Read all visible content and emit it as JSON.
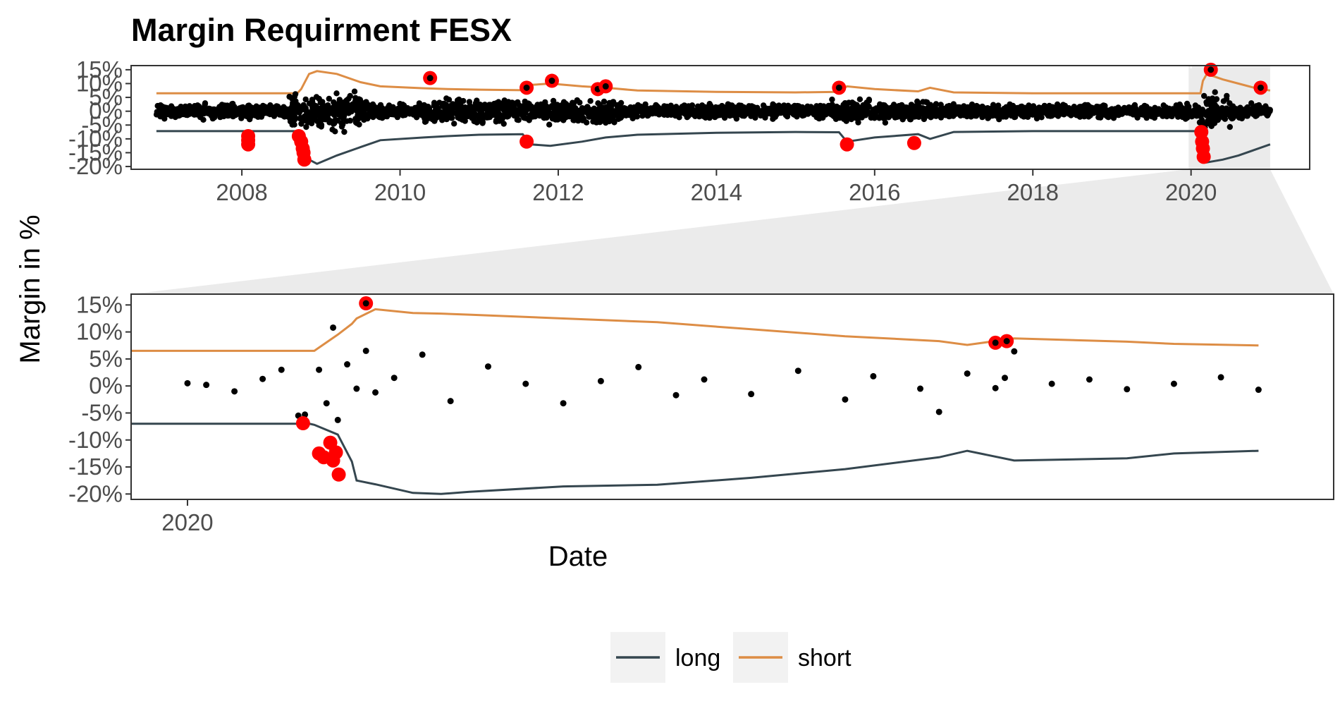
{
  "chart_data": {
    "type": "line",
    "title": "Margin Requirment FESX",
    "xlabel": "Date",
    "ylabel": "Margin in %",
    "colors": {
      "long": "#35464f",
      "short": "#dd8d45",
      "returns": "#000000",
      "breach": "#ff0000",
      "zoom_band": "#ebebeb"
    },
    "legend": {
      "position": "bottom",
      "entries": [
        {
          "name": "long",
          "color": "#35464f"
        },
        {
          "name": "short",
          "color": "#dd8d45"
        }
      ]
    },
    "overview": {
      "x_range": [
        2006.6,
        2021.5
      ],
      "x_ticks": [
        2008,
        2010,
        2012,
        2014,
        2016,
        2018,
        2020
      ],
      "x_tick_labels": [
        "2008",
        "2010",
        "2012",
        "2014",
        "2016",
        "2018",
        "2020"
      ],
      "y_range": [
        -21,
        16.5
      ],
      "y_ticks": [
        -20,
        -15,
        -10,
        -5,
        0,
        5,
        10,
        15
      ],
      "y_tick_labels": [
        "-20%",
        "-15%",
        "-10%",
        "-5%",
        "0%",
        "5%",
        "10%",
        "15%"
      ],
      "zoom_window": [
        2019.97,
        2021.0
      ],
      "series": [
        {
          "name": "short",
          "x": [
            2006.92,
            2008.7,
            2008.75,
            2008.85,
            2008.95,
            2009.2,
            2009.5,
            2009.75,
            2010.3,
            2010.6,
            2011.0,
            2011.55,
            2011.65,
            2011.9,
            2012.3,
            2012.6,
            2013.0,
            2014.0,
            2015.0,
            2015.55,
            2015.65,
            2016.0,
            2016.55,
            2016.7,
            2017.0,
            2018.0,
            2019.0,
            2020.0,
            2020.12,
            2020.15,
            2020.2,
            2020.4,
            2020.6,
            2020.8,
            2021.0
          ],
          "y": [
            6.5,
            6.5,
            8,
            13.5,
            14.5,
            13.5,
            10.5,
            9,
            8.3,
            8,
            7.8,
            7.6,
            9.5,
            10,
            9,
            8.5,
            7.5,
            7.0,
            6.8,
            7,
            9,
            8,
            7.2,
            8.5,
            6.8,
            6.5,
            6.5,
            6.5,
            6.5,
            11,
            13.5,
            11.5,
            10,
            8.5,
            7.5
          ]
        },
        {
          "name": "long",
          "x": [
            2006.92,
            2008.7,
            2008.75,
            2008.85,
            2008.95,
            2009.2,
            2009.5,
            2009.75,
            2010.3,
            2010.6,
            2011.0,
            2011.55,
            2011.65,
            2011.9,
            2012.3,
            2012.6,
            2013.0,
            2014.0,
            2015.0,
            2015.55,
            2015.65,
            2016.0,
            2016.55,
            2016.7,
            2017.0,
            2018.0,
            2019.0,
            2020.0,
            2020.12,
            2020.15,
            2020.2,
            2020.4,
            2020.6,
            2020.8,
            2021.0
          ],
          "y": [
            -7.2,
            -7.2,
            -12,
            -17.5,
            -19,
            -16,
            -13,
            -10.5,
            -9.5,
            -9,
            -8.5,
            -8.3,
            -12,
            -12.5,
            -11,
            -9.5,
            -8.5,
            -7.8,
            -7.5,
            -7.6,
            -11,
            -9.5,
            -8.3,
            -10,
            -7.5,
            -7.2,
            -7.2,
            -7.2,
            -7.2,
            -14,
            -18.5,
            -17.5,
            -16,
            -14,
            -12
          ]
        }
      ],
      "breaches": [
        {
          "x": 2008.08,
          "y": -9
        },
        {
          "x": 2008.08,
          "y": -10.5
        },
        {
          "x": 2008.08,
          "y": -12
        },
        {
          "x": 2008.72,
          "y": -9
        },
        {
          "x": 2008.75,
          "y": -11
        },
        {
          "x": 2008.77,
          "y": -13.5
        },
        {
          "x": 2008.78,
          "y": -15
        },
        {
          "x": 2008.79,
          "y": -17.5
        },
        {
          "x": 2010.38,
          "y": 12
        },
        {
          "x": 2011.6,
          "y": 8.5
        },
        {
          "x": 2011.6,
          "y": -11
        },
        {
          "x": 2011.92,
          "y": 11
        },
        {
          "x": 2012.5,
          "y": 8
        },
        {
          "x": 2012.6,
          "y": 9
        },
        {
          "x": 2015.55,
          "y": 8.5
        },
        {
          "x": 2015.65,
          "y": -12
        },
        {
          "x": 2016.5,
          "y": -11.5
        },
        {
          "x": 2020.13,
          "y": -7.5
        },
        {
          "x": 2020.14,
          "y": -11
        },
        {
          "x": 2020.15,
          "y": -13.5
        },
        {
          "x": 2020.16,
          "y": -16.5
        },
        {
          "x": 2020.25,
          "y": 15
        },
        {
          "x": 2020.88,
          "y": 8.5
        }
      ]
    },
    "zoom": {
      "x_range": [
        2019.94,
        2021.22
      ],
      "x_ticks": [
        2020
      ],
      "x_tick_labels": [
        "2020"
      ],
      "y_range": [
        -21,
        17
      ],
      "y_ticks": [
        -20,
        -15,
        -10,
        -5,
        0,
        5,
        10,
        15
      ],
      "y_tick_labels": [
        "-20%",
        "-15%",
        "-10%",
        "-5%",
        "0%",
        "5%",
        "10%",
        "15%"
      ],
      "series": [
        {
          "name": "short",
          "x": [
            2019.94,
            2020.13,
            2020.135,
            2020.16,
            2020.175,
            2020.18,
            2020.2,
            2020.24,
            2020.27,
            2020.3,
            2020.4,
            2020.5,
            2020.6,
            2020.7,
            2020.8,
            2020.83,
            2020.88,
            2021.0,
            2021.05,
            2021.14
          ],
          "y": [
            6.5,
            6.5,
            6.5,
            9.5,
            11.5,
            12.5,
            14.2,
            13.5,
            13.4,
            13.2,
            12.5,
            11.8,
            10.5,
            9.2,
            8.3,
            7.6,
            8.8,
            8.2,
            7.8,
            7.5
          ]
        },
        {
          "name": "long",
          "x": [
            2019.94,
            2020.13,
            2020.135,
            2020.16,
            2020.175,
            2020.18,
            2020.2,
            2020.24,
            2020.27,
            2020.3,
            2020.4,
            2020.5,
            2020.6,
            2020.7,
            2020.8,
            2020.83,
            2020.88,
            2021.0,
            2021.05,
            2021.14
          ],
          "y": [
            -7,
            -7,
            -7.2,
            -9,
            -14,
            -17.5,
            -18.2,
            -19.8,
            -20,
            -19.6,
            -18.6,
            -18.3,
            -17.0,
            -15.4,
            -13.2,
            -12.0,
            -13.8,
            -13.4,
            -12.5,
            -12.0
          ]
        },
        {
          "name": "returns",
          "x": [
            2020.0,
            2020.02,
            2020.05,
            2020.08,
            2020.1,
            2020.118,
            2020.125,
            2020.14,
            2020.148,
            2020.155,
            2020.16,
            2020.17,
            2020.18,
            2020.19,
            2020.2,
            2020.22,
            2020.25,
            2020.28,
            2020.32,
            2020.36,
            2020.4,
            2020.44,
            2020.48,
            2020.52,
            2020.55,
            2020.6,
            2020.65,
            2020.7,
            2020.73,
            2020.78,
            2020.8,
            2020.83,
            2020.86,
            2020.87,
            2020.88,
            2020.92,
            2020.96,
            2021.0,
            2021.05,
            2021.1,
            2021.14
          ],
          "y": [
            0.5,
            0.2,
            -1,
            1.3,
            3,
            -5.5,
            -5.3,
            3,
            -3.2,
            10.8,
            -6.3,
            4,
            -0.5,
            6.5,
            -1.2,
            1.5,
            5.8,
            -2.8,
            3.6,
            0.4,
            -3.2,
            0.9,
            3.5,
            -1.7,
            1.2,
            -1.5,
            2.8,
            -2.5,
            1.8,
            -0.5,
            -4.8,
            2.3,
            -0.4,
            1.5,
            6.4,
            0.4,
            1.2,
            -0.6,
            0.4,
            1.6,
            -0.7
          ]
        }
      ],
      "breaches": [
        {
          "x": 2020.123,
          "y": -6.9
        },
        {
          "x": 2020.14,
          "y": -12.5
        },
        {
          "x": 2020.145,
          "y": -13.2
        },
        {
          "x": 2020.152,
          "y": -10.5
        },
        {
          "x": 2020.155,
          "y": -13.8
        },
        {
          "x": 2020.158,
          "y": -12.3
        },
        {
          "x": 2020.161,
          "y": -16.4
        },
        {
          "x": 2020.19,
          "y": 15.3
        },
        {
          "x": 2020.86,
          "y": 8
        },
        {
          "x": 2020.872,
          "y": 8.3
        }
      ]
    }
  }
}
